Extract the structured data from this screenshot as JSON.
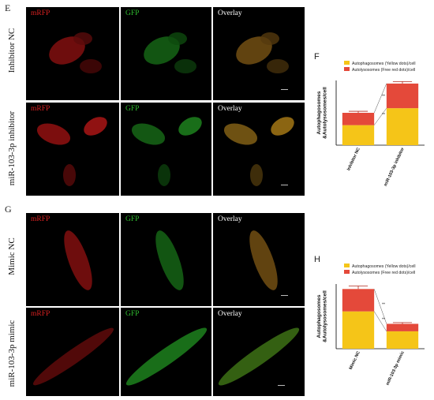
{
  "sections": [
    {
      "letter": "E",
      "rows": [
        {
          "label": "Inhibitor NC"
        },
        {
          "label": "miR-103-3p inhibitor"
        }
      ]
    },
    {
      "letter": "G",
      "rows": [
        {
          "label": "Mimic NC"
        },
        {
          "label": "miR-103-3p mimic"
        }
      ]
    }
  ],
  "channels": {
    "mrfp": "mRFP",
    "gfp": "GFP",
    "overlay": "Overlay"
  },
  "colors": {
    "mrfp": "#d42020",
    "gfp": "#2eb82e",
    "overlay": "#ffffff",
    "yellow_bar": "#f5c518",
    "red_bar": "#e4493a"
  },
  "chart_data": [
    {
      "panel_letter": "F",
      "type": "bar",
      "stacked": true,
      "categories": [
        "Inhibitor NC",
        "miR-103-3p inhibitor"
      ],
      "series": [
        {
          "name": "Autophagosomes (Yellow dots)/cell",
          "color": "#f5c518",
          "values": [
            13,
            24
          ],
          "errors": [
            1,
            1.2
          ]
        },
        {
          "name": "Autolysosomes (Free red dots)/cell",
          "color": "#e4493a",
          "values": [
            8,
            16
          ],
          "errors": [
            1,
            1.3
          ]
        }
      ],
      "ylabel": "Autophagosomes &Autolysosomes/cell",
      "ylim": [
        0,
        42
      ],
      "significance": [
        "**",
        "**"
      ],
      "legend_position": "top"
    },
    {
      "panel_letter": "H",
      "type": "bar",
      "stacked": true,
      "categories": [
        "Mimic NC",
        "miR-103-3p mimic"
      ],
      "series": [
        {
          "name": "Autophagosomes (Yellow dots)/cell",
          "color": "#f5c518",
          "values": [
            15,
            7
          ],
          "errors": [
            1.2,
            0.6
          ]
        },
        {
          "name": "Autolysosomes (Free red dots)/cell",
          "color": "#e4493a",
          "values": [
            9,
            3
          ],
          "errors": [
            1.2,
            0.5
          ]
        }
      ],
      "ylabel": "Autophagosomes &Autolysosomes/cell",
      "ylim": [
        0,
        26
      ],
      "significance": [
        "**",
        "**"
      ],
      "legend_position": "top"
    }
  ]
}
